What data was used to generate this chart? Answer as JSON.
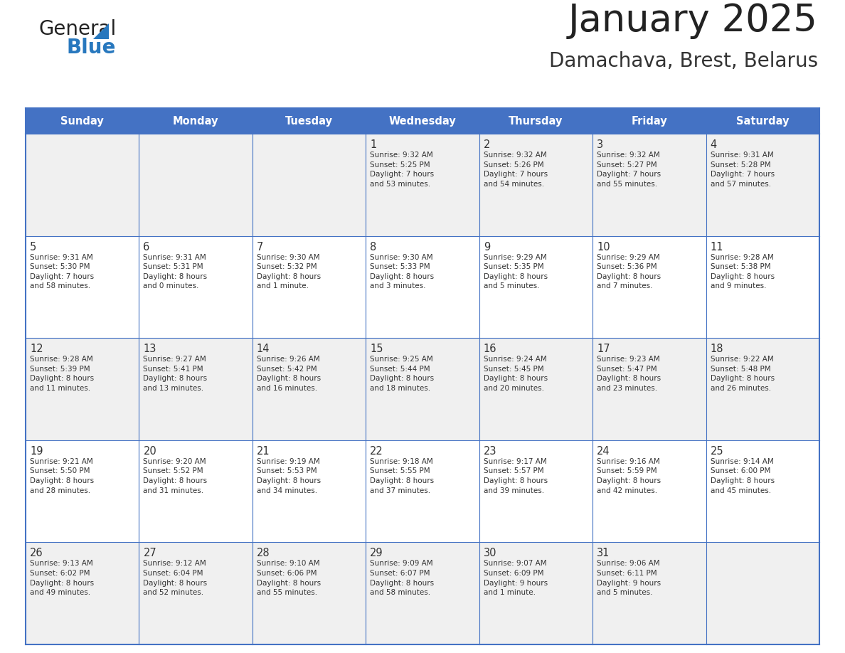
{
  "title": "January 2025",
  "subtitle": "Damachava, Brest, Belarus",
  "header_bg_color": "#4472C4",
  "header_text_color": "#FFFFFF",
  "odd_row_bg": "#F0F0F0",
  "even_row_bg": "#FFFFFF",
  "days_of_week": [
    "Sunday",
    "Monday",
    "Tuesday",
    "Wednesday",
    "Thursday",
    "Friday",
    "Saturday"
  ],
  "calendar_data": [
    [
      "",
      "",
      "",
      "1\nSunrise: 9:32 AM\nSunset: 5:25 PM\nDaylight: 7 hours\nand 53 minutes.",
      "2\nSunrise: 9:32 AM\nSunset: 5:26 PM\nDaylight: 7 hours\nand 54 minutes.",
      "3\nSunrise: 9:32 AM\nSunset: 5:27 PM\nDaylight: 7 hours\nand 55 minutes.",
      "4\nSunrise: 9:31 AM\nSunset: 5:28 PM\nDaylight: 7 hours\nand 57 minutes."
    ],
    [
      "5\nSunrise: 9:31 AM\nSunset: 5:30 PM\nDaylight: 7 hours\nand 58 minutes.",
      "6\nSunrise: 9:31 AM\nSunset: 5:31 PM\nDaylight: 8 hours\nand 0 minutes.",
      "7\nSunrise: 9:30 AM\nSunset: 5:32 PM\nDaylight: 8 hours\nand 1 minute.",
      "8\nSunrise: 9:30 AM\nSunset: 5:33 PM\nDaylight: 8 hours\nand 3 minutes.",
      "9\nSunrise: 9:29 AM\nSunset: 5:35 PM\nDaylight: 8 hours\nand 5 minutes.",
      "10\nSunrise: 9:29 AM\nSunset: 5:36 PM\nDaylight: 8 hours\nand 7 minutes.",
      "11\nSunrise: 9:28 AM\nSunset: 5:38 PM\nDaylight: 8 hours\nand 9 minutes."
    ],
    [
      "12\nSunrise: 9:28 AM\nSunset: 5:39 PM\nDaylight: 8 hours\nand 11 minutes.",
      "13\nSunrise: 9:27 AM\nSunset: 5:41 PM\nDaylight: 8 hours\nand 13 minutes.",
      "14\nSunrise: 9:26 AM\nSunset: 5:42 PM\nDaylight: 8 hours\nand 16 minutes.",
      "15\nSunrise: 9:25 AM\nSunset: 5:44 PM\nDaylight: 8 hours\nand 18 minutes.",
      "16\nSunrise: 9:24 AM\nSunset: 5:45 PM\nDaylight: 8 hours\nand 20 minutes.",
      "17\nSunrise: 9:23 AM\nSunset: 5:47 PM\nDaylight: 8 hours\nand 23 minutes.",
      "18\nSunrise: 9:22 AM\nSunset: 5:48 PM\nDaylight: 8 hours\nand 26 minutes."
    ],
    [
      "19\nSunrise: 9:21 AM\nSunset: 5:50 PM\nDaylight: 8 hours\nand 28 minutes.",
      "20\nSunrise: 9:20 AM\nSunset: 5:52 PM\nDaylight: 8 hours\nand 31 minutes.",
      "21\nSunrise: 9:19 AM\nSunset: 5:53 PM\nDaylight: 8 hours\nand 34 minutes.",
      "22\nSunrise: 9:18 AM\nSunset: 5:55 PM\nDaylight: 8 hours\nand 37 minutes.",
      "23\nSunrise: 9:17 AM\nSunset: 5:57 PM\nDaylight: 8 hours\nand 39 minutes.",
      "24\nSunrise: 9:16 AM\nSunset: 5:59 PM\nDaylight: 8 hours\nand 42 minutes.",
      "25\nSunrise: 9:14 AM\nSunset: 6:00 PM\nDaylight: 8 hours\nand 45 minutes."
    ],
    [
      "26\nSunrise: 9:13 AM\nSunset: 6:02 PM\nDaylight: 8 hours\nand 49 minutes.",
      "27\nSunrise: 9:12 AM\nSunset: 6:04 PM\nDaylight: 8 hours\nand 52 minutes.",
      "28\nSunrise: 9:10 AM\nSunset: 6:06 PM\nDaylight: 8 hours\nand 55 minutes.",
      "29\nSunrise: 9:09 AM\nSunset: 6:07 PM\nDaylight: 8 hours\nand 58 minutes.",
      "30\nSunrise: 9:07 AM\nSunset: 6:09 PM\nDaylight: 9 hours\nand 1 minute.",
      "31\nSunrise: 9:06 AM\nSunset: 6:11 PM\nDaylight: 9 hours\nand 5 minutes.",
      ""
    ]
  ],
  "logo_color_general": "#222222",
  "logo_color_blue": "#2878BE",
  "logo_triangle_color": "#2878BE",
  "border_color": "#4472C4",
  "cell_text_color": "#333333",
  "date_num_color": "#333333",
  "grid_line_color": "#4472C4",
  "title_color": "#222222",
  "subtitle_color": "#333333"
}
